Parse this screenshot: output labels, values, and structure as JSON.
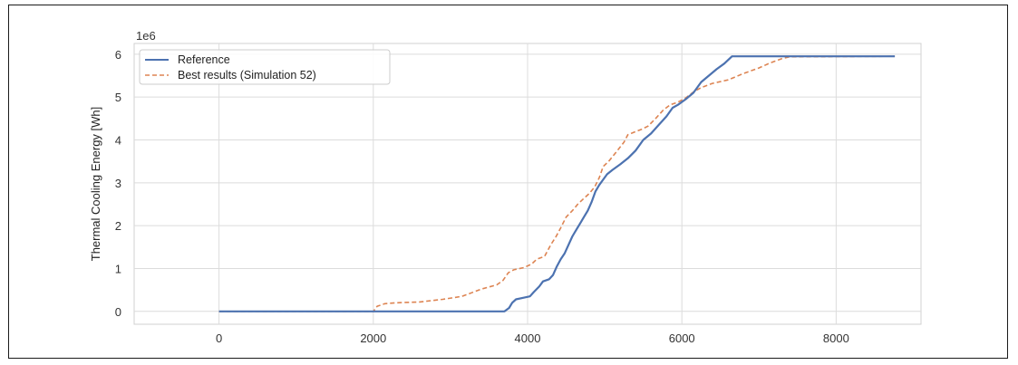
{
  "chart_data": {
    "type": "line",
    "ylabel": "Thermal Cooling Energy [Wh]",
    "xlabel": "",
    "y_offset_label": "1e6",
    "xlim": [
      -1100,
      9100
    ],
    "ylim": [
      -0.3,
      6.25
    ],
    "x_ticks": [
      0,
      2000,
      4000,
      6000,
      8000
    ],
    "y_ticks": [
      0,
      1,
      2,
      3,
      4,
      5,
      6
    ],
    "grid": true,
    "legend": "top-left",
    "series": [
      {
        "name": "Reference",
        "color": "#4c72b0",
        "style": "solid",
        "points": [
          [
            0,
            0
          ],
          [
            3700,
            0
          ],
          [
            3760,
            0.08
          ],
          [
            3800,
            0.2
          ],
          [
            3850,
            0.28
          ],
          [
            3950,
            0.32
          ],
          [
            4030,
            0.35
          ],
          [
            4080,
            0.45
          ],
          [
            4150,
            0.58
          ],
          [
            4200,
            0.7
          ],
          [
            4280,
            0.75
          ],
          [
            4330,
            0.85
          ],
          [
            4380,
            1.05
          ],
          [
            4430,
            1.22
          ],
          [
            4480,
            1.35
          ],
          [
            4530,
            1.55
          ],
          [
            4580,
            1.75
          ],
          [
            4630,
            1.9
          ],
          [
            4680,
            2.05
          ],
          [
            4730,
            2.2
          ],
          [
            4780,
            2.35
          ],
          [
            4830,
            2.55
          ],
          [
            4880,
            2.8
          ],
          [
            4930,
            2.95
          ],
          [
            4970,
            3.05
          ],
          [
            5030,
            3.2
          ],
          [
            5100,
            3.3
          ],
          [
            5200,
            3.43
          ],
          [
            5300,
            3.57
          ],
          [
            5400,
            3.75
          ],
          [
            5500,
            4.0
          ],
          [
            5600,
            4.15
          ],
          [
            5700,
            4.35
          ],
          [
            5800,
            4.55
          ],
          [
            5880,
            4.75
          ],
          [
            5950,
            4.82
          ],
          [
            6050,
            4.95
          ],
          [
            6150,
            5.1
          ],
          [
            6250,
            5.35
          ],
          [
            6350,
            5.5
          ],
          [
            6450,
            5.65
          ],
          [
            6550,
            5.78
          ],
          [
            6650,
            5.95
          ],
          [
            7000,
            5.95
          ],
          [
            8760,
            5.95
          ]
        ]
      },
      {
        "name": "Best results (Simulation 52)",
        "color": "#dd8452",
        "style": "dashed",
        "points": [
          [
            0,
            0
          ],
          [
            2000,
            0
          ],
          [
            2050,
            0.12
          ],
          [
            2150,
            0.18
          ],
          [
            2300,
            0.2
          ],
          [
            2600,
            0.22
          ],
          [
            2900,
            0.28
          ],
          [
            3150,
            0.35
          ],
          [
            3400,
            0.52
          ],
          [
            3600,
            0.62
          ],
          [
            3680,
            0.72
          ],
          [
            3750,
            0.9
          ],
          [
            3820,
            0.97
          ],
          [
            3950,
            1.02
          ],
          [
            4050,
            1.1
          ],
          [
            4120,
            1.22
          ],
          [
            4220,
            1.28
          ],
          [
            4300,
            1.55
          ],
          [
            4370,
            1.75
          ],
          [
            4430,
            1.95
          ],
          [
            4500,
            2.2
          ],
          [
            4580,
            2.35
          ],
          [
            4650,
            2.5
          ],
          [
            4720,
            2.62
          ],
          [
            4800,
            2.75
          ],
          [
            4870,
            2.9
          ],
          [
            4930,
            3.12
          ],
          [
            4980,
            3.38
          ],
          [
            5050,
            3.5
          ],
          [
            5150,
            3.72
          ],
          [
            5250,
            3.95
          ],
          [
            5300,
            4.12
          ],
          [
            5380,
            4.18
          ],
          [
            5480,
            4.25
          ],
          [
            5560,
            4.32
          ],
          [
            5650,
            4.48
          ],
          [
            5760,
            4.7
          ],
          [
            5850,
            4.82
          ],
          [
            5950,
            4.88
          ],
          [
            6050,
            4.98
          ],
          [
            6150,
            5.12
          ],
          [
            6250,
            5.22
          ],
          [
            6400,
            5.32
          ],
          [
            6600,
            5.4
          ],
          [
            6800,
            5.55
          ],
          [
            7000,
            5.68
          ],
          [
            7150,
            5.8
          ],
          [
            7300,
            5.9
          ],
          [
            7400,
            5.94
          ],
          [
            8760,
            5.95
          ]
        ]
      }
    ]
  }
}
